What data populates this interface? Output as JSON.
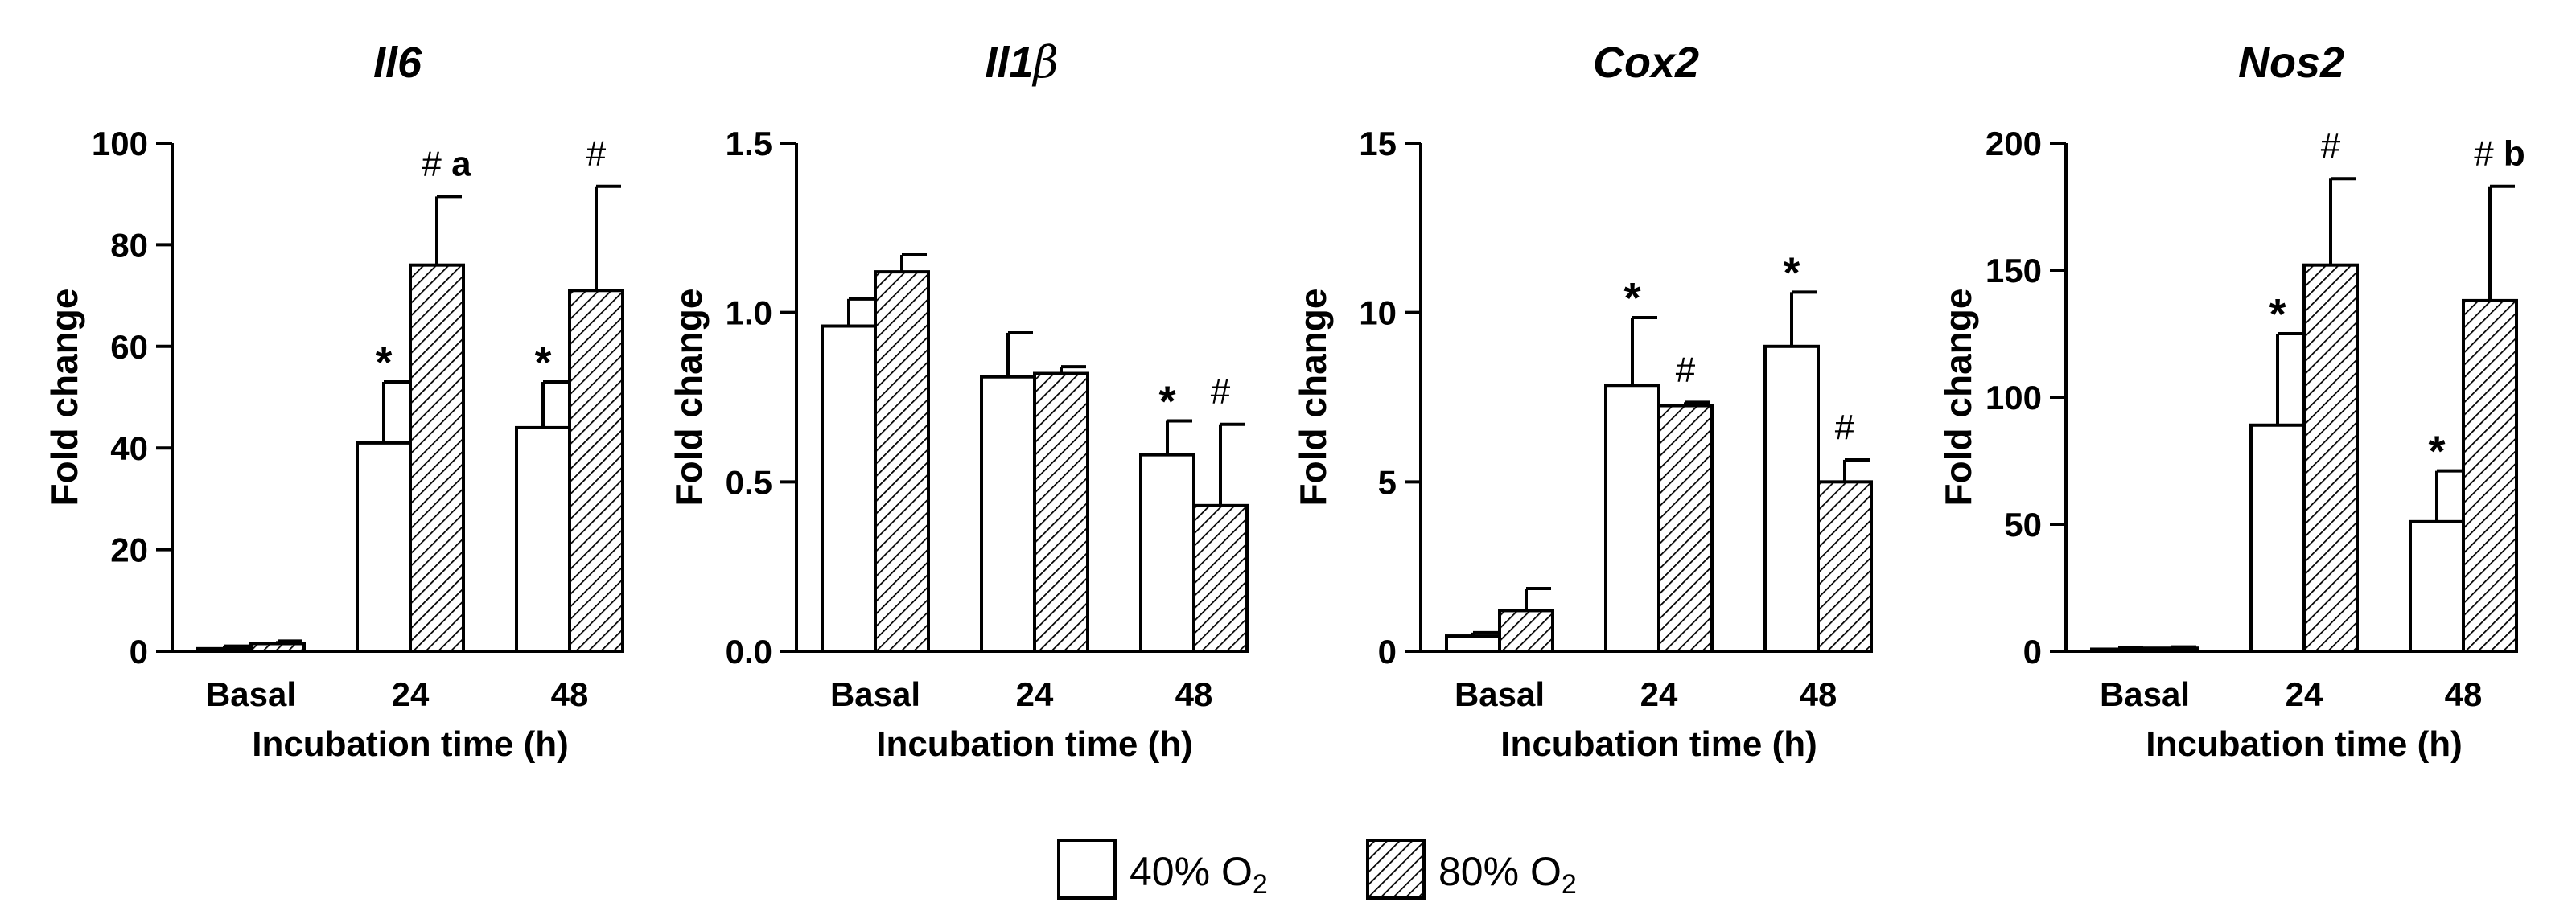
{
  "figure": {
    "colors": {
      "axis": "#000000",
      "bar_fill": "#ffffff",
      "hatch": "#000000"
    },
    "legend": [
      {
        "label": "40% O",
        "subscript": "2",
        "pattern": "solid"
      },
      {
        "label": "80% O",
        "subscript": "2",
        "pattern": "hatched"
      }
    ]
  },
  "chart_data": [
    {
      "type": "bar",
      "title": "Il6",
      "xlabel": "Incubation time (h)",
      "ylabel": "Fold change",
      "categories": [
        "Basal",
        "24",
        "48"
      ],
      "ylim": [
        0,
        100
      ],
      "yticks": [
        "0",
        "20",
        "40",
        "60",
        "80",
        "100"
      ],
      "series": [
        {
          "name": "40% O2",
          "values": [
            0.5,
            41,
            44
          ],
          "errors": [
            0.5,
            12,
            9
          ],
          "annotations": [
            "",
            "*",
            "*"
          ]
        },
        {
          "name": "80% O2",
          "values": [
            1.5,
            76,
            71
          ],
          "errors": [
            0.5,
            13.5,
            20.5
          ],
          "annotations": [
            "",
            "# a",
            "#"
          ]
        }
      ]
    },
    {
      "type": "bar",
      "title": "Il1",
      "title_symbol": "β",
      "xlabel": "Incubation time (h)",
      "ylabel": "Fold change",
      "categories": [
        "Basal",
        "24",
        "48"
      ],
      "ylim": [
        0,
        1.5
      ],
      "yticks": [
        "0.0",
        "0.5",
        "1.0",
        "1.5"
      ],
      "series": [
        {
          "name": "40% O2",
          "values": [
            0.96,
            0.81,
            0.58
          ],
          "errors": [
            0.08,
            0.13,
            0.1
          ],
          "annotations": [
            "",
            "",
            "*"
          ]
        },
        {
          "name": "80% O2",
          "values": [
            1.12,
            0.82,
            0.43
          ],
          "errors": [
            0.05,
            0.02,
            0.24
          ],
          "annotations": [
            "",
            "",
            "#"
          ]
        }
      ]
    },
    {
      "type": "bar",
      "title": "Cox2",
      "xlabel": "Incubation time (h)",
      "ylabel": "Fold change",
      "categories": [
        "Basal",
        "24",
        "48"
      ],
      "ylim": [
        0,
        15
      ],
      "yticks": [
        "0",
        "5",
        "10",
        "15"
      ],
      "series": [
        {
          "name": "40% O2",
          "values": [
            0.45,
            7.85,
            9.0
          ],
          "errors": [
            0.1,
            2.0,
            1.6
          ],
          "annotations": [
            "",
            "*",
            "*"
          ]
        },
        {
          "name": "80% O2",
          "values": [
            1.2,
            7.25,
            5.0
          ],
          "errors": [
            0.65,
            0.1,
            0.65
          ],
          "annotations": [
            "",
            "#",
            "#"
          ]
        }
      ]
    },
    {
      "type": "bar",
      "title": "Nos2",
      "xlabel": "Incubation time (h)",
      "ylabel": "Fold change",
      "categories": [
        "Basal",
        "24",
        "48"
      ],
      "ylim": [
        0,
        200
      ],
      "yticks": [
        "0",
        "50",
        "100",
        "150",
        "200"
      ],
      "series": [
        {
          "name": "40% O2",
          "values": [
            0.8,
            89,
            51
          ],
          "errors": [
            0.5,
            36,
            20
          ],
          "annotations": [
            "",
            "*",
            "*"
          ]
        },
        {
          "name": "80% O2",
          "values": [
            1.2,
            152,
            138
          ],
          "errors": [
            0.5,
            34,
            45
          ],
          "annotations": [
            "",
            "#",
            "# b"
          ]
        }
      ]
    }
  ]
}
